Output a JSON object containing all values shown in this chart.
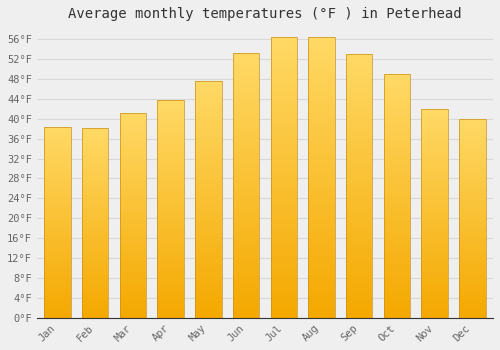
{
  "title": "Average monthly temperatures (°F ) in Peterhead",
  "months": [
    "Jan",
    "Feb",
    "Mar",
    "Apr",
    "May",
    "Jun",
    "Jul",
    "Aug",
    "Sep",
    "Oct",
    "Nov",
    "Dec"
  ],
  "values": [
    38.3,
    38.1,
    41.2,
    43.7,
    47.5,
    53.1,
    56.5,
    56.5,
    53.0,
    49.0,
    42.0,
    40.0
  ],
  "ylim": [
    0,
    58
  ],
  "yticks": [
    0,
    4,
    8,
    12,
    16,
    20,
    24,
    28,
    32,
    36,
    40,
    44,
    48,
    52,
    56
  ],
  "ytick_labels": [
    "0°F",
    "4°F",
    "8°F",
    "12°F",
    "16°F",
    "20°F",
    "24°F",
    "28°F",
    "32°F",
    "36°F",
    "40°F",
    "44°F",
    "48°F",
    "52°F",
    "56°F"
  ],
  "bar_color_bottom": "#F5A800",
  "bar_color_top": "#FFD966",
  "bar_edge_color": "#C8901A",
  "background_color": "#EFEFEF",
  "grid_color": "#D8D8D8",
  "title_fontsize": 10,
  "tick_fontsize": 7.5,
  "font_family": "monospace",
  "title_color": "#333333",
  "tick_color": "#666666"
}
